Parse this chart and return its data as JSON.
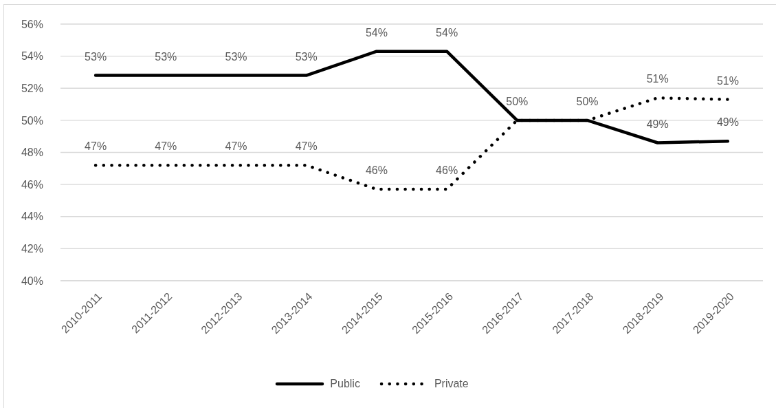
{
  "chart_data": {
    "type": "line",
    "categories": [
      "2010-2011",
      "2011-2012",
      "2012-2013",
      "2013-2014",
      "2014-2015",
      "2015-2016",
      "2016-2017",
      "2017-2018",
      "2018-2019",
      "2019-2020"
    ],
    "series": [
      {
        "name": "Public",
        "color": "#000000",
        "line_style": "solid",
        "values": [
          52.8,
          52.8,
          52.8,
          52.8,
          54.3,
          54.3,
          50.0,
          50.0,
          48.6,
          48.7
        ],
        "value_labels": [
          "53%",
          "53%",
          "53%",
          "53%",
          "54%",
          "54%",
          "50%",
          "50%",
          "49%",
          "49%"
        ]
      },
      {
        "name": "Private",
        "color": "#000000",
        "line_style": "dotted",
        "values": [
          47.2,
          47.2,
          47.2,
          47.2,
          45.7,
          45.7,
          50.0,
          50.0,
          51.4,
          51.3
        ],
        "value_labels": [
          "47%",
          "47%",
          "47%",
          "47%",
          "46%",
          "46%",
          null,
          null,
          "51%",
          "51%"
        ]
      }
    ],
    "ylim": [
      40,
      56
    ],
    "yticks": [
      {
        "value": 40,
        "label": "40%"
      },
      {
        "value": 42,
        "label": "42%"
      },
      {
        "value": 44,
        "label": "44%"
      },
      {
        "value": 46,
        "label": "46%"
      },
      {
        "value": 48,
        "label": "48%"
      },
      {
        "value": 50,
        "label": "50%"
      },
      {
        "value": 52,
        "label": "52%"
      },
      {
        "value": 54,
        "label": "54%"
      },
      {
        "value": 56,
        "label": "56%"
      }
    ],
    "grid": "y",
    "legend": "bottom",
    "marker": "none"
  }
}
